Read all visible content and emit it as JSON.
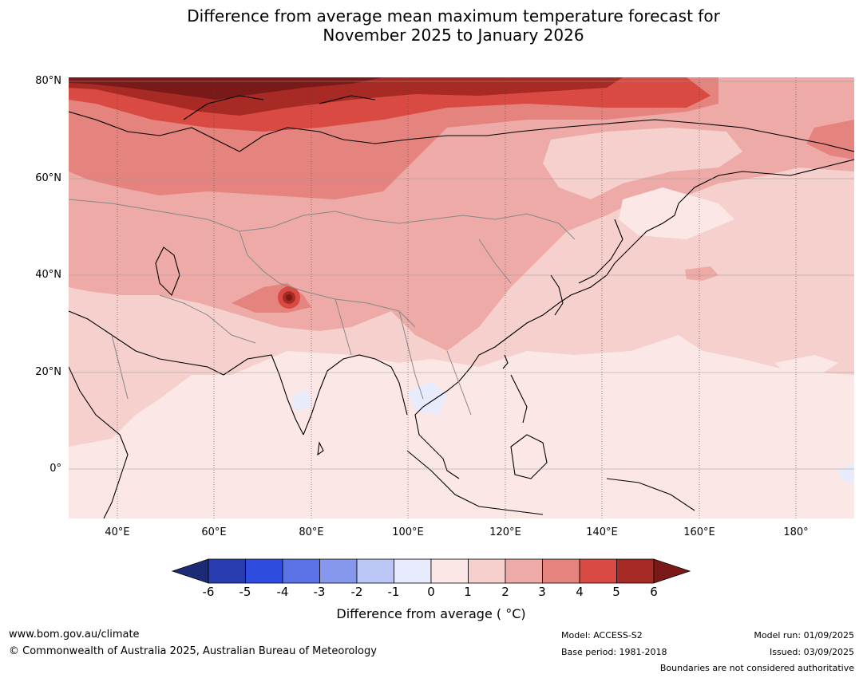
{
  "title_line1": "Difference from average mean maximum temperature forecast for",
  "title_line2": "November 2025 to January 2026",
  "map": {
    "lat_labels": [
      "80°N",
      "60°N",
      "40°N",
      "20°N",
      "0°"
    ],
    "lon_labels": [
      "40°E",
      "60°E",
      "80°E",
      "100°E",
      "120°E",
      "140°E",
      "160°E",
      "180°"
    ],
    "lat_values": [
      80,
      60,
      40,
      20,
      0
    ],
    "lon_values": [
      40,
      60,
      80,
      100,
      120,
      140,
      160,
      180
    ],
    "extent": {
      "lon_min": 30,
      "lon_max": 192,
      "lat_min": -10,
      "lat_max": 80
    }
  },
  "colorbar": {
    "label": "Difference from average ( °C)",
    "ticks": [
      "-6",
      "-5",
      "-4",
      "-3",
      "-2",
      "-1",
      "0",
      "1",
      "2",
      "3",
      "4",
      "5",
      "6"
    ],
    "colors": [
      "#1c2a78",
      "#2a3db0",
      "#2f4ce0",
      "#5b72e6",
      "#8698ee",
      "#bcc6f5",
      "#e7ebfb",
      "#fbe8e6",
      "#f5d0cd",
      "#edaaa6",
      "#e5837e",
      "#d94a42",
      "#a82a24",
      "#7a1a18"
    ]
  },
  "footer": {
    "website": "www.bom.gov.au/climate",
    "copyright": "© Commonwealth of Australia 2025, Australian Bureau of Meteorology",
    "model": "Model: ACCESS-S2",
    "base_period": "Base period: 1981-2018",
    "model_run": "Model run: 01/09/2025",
    "issued": "Issued: 03/09/2025",
    "boundaries": "Boundaries are not considered authoritative"
  }
}
